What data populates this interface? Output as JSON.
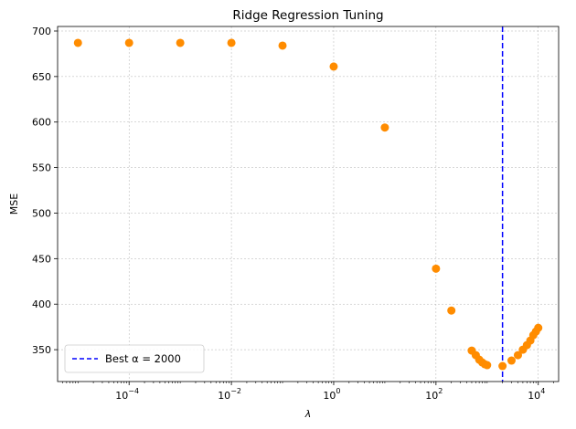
{
  "chart_data": {
    "type": "scatter",
    "title": "Ridge Regression Tuning",
    "xlabel": "λ",
    "ylabel": "MSE",
    "xscale": "log",
    "xlim": [
      4e-06,
      25000
    ],
    "ylim": [
      315,
      705
    ],
    "grid": true,
    "x_tick_labels": [
      {
        "value": 0.0001,
        "base": "10",
        "exp": "−4"
      },
      {
        "value": 0.01,
        "base": "10",
        "exp": "−2"
      },
      {
        "value": 1,
        "base": "10",
        "exp": "0"
      },
      {
        "value": 100,
        "base": "10",
        "exp": "2"
      },
      {
        "value": 10000,
        "base": "10",
        "exp": "4"
      }
    ],
    "y_ticks": [
      350,
      400,
      450,
      500,
      550,
      600,
      650,
      700
    ],
    "series": [
      {
        "color": "#ff8c00",
        "x": [
          1e-05,
          0.0001,
          0.001,
          0.01,
          0.1,
          1,
          10,
          100,
          200,
          500,
          600,
          700,
          800,
          900,
          1000,
          2000,
          3000,
          4000,
          5000,
          6000,
          7000,
          8000,
          9000,
          10000
        ],
        "y": [
          687,
          687,
          687,
          687,
          684,
          661,
          594,
          439,
          393,
          349,
          344,
          339,
          336,
          334,
          333,
          332,
          338,
          344,
          350,
          355,
          360,
          366,
          370,
          374
        ]
      }
    ],
    "best_line": {
      "x": 2000,
      "color": "#0000ff",
      "style": "dashed"
    },
    "legend": {
      "position": "lower-left",
      "label": "Best α = 2000"
    }
  }
}
